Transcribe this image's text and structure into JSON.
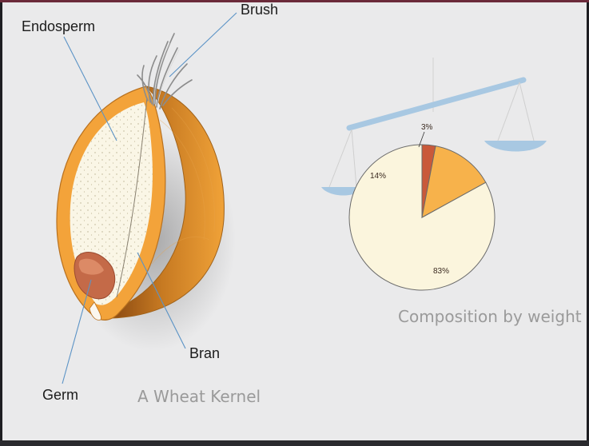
{
  "labels": {
    "endosperm": "Endosperm",
    "brush": "Brush",
    "bran": "Bran",
    "germ": "Germ"
  },
  "kernel_caption": "A Wheat Kernel",
  "composition_caption": "Composition by weight",
  "colors": {
    "bran_orange": "#f3a33a",
    "endosperm_cream": "#faf6e6",
    "germ_red": "#b65a3b",
    "leader_line": "#5b93c6",
    "scale_blue": "#a8c8e2"
  },
  "chart_data": {
    "type": "pie",
    "slices": [
      {
        "label": "83%",
        "value": 83,
        "color": "#fbf5dd"
      },
      {
        "label": "3%",
        "value": 3,
        "color": "#c9593a"
      },
      {
        "label": "14%",
        "value": 14,
        "color": "#f7b24b"
      }
    ]
  }
}
